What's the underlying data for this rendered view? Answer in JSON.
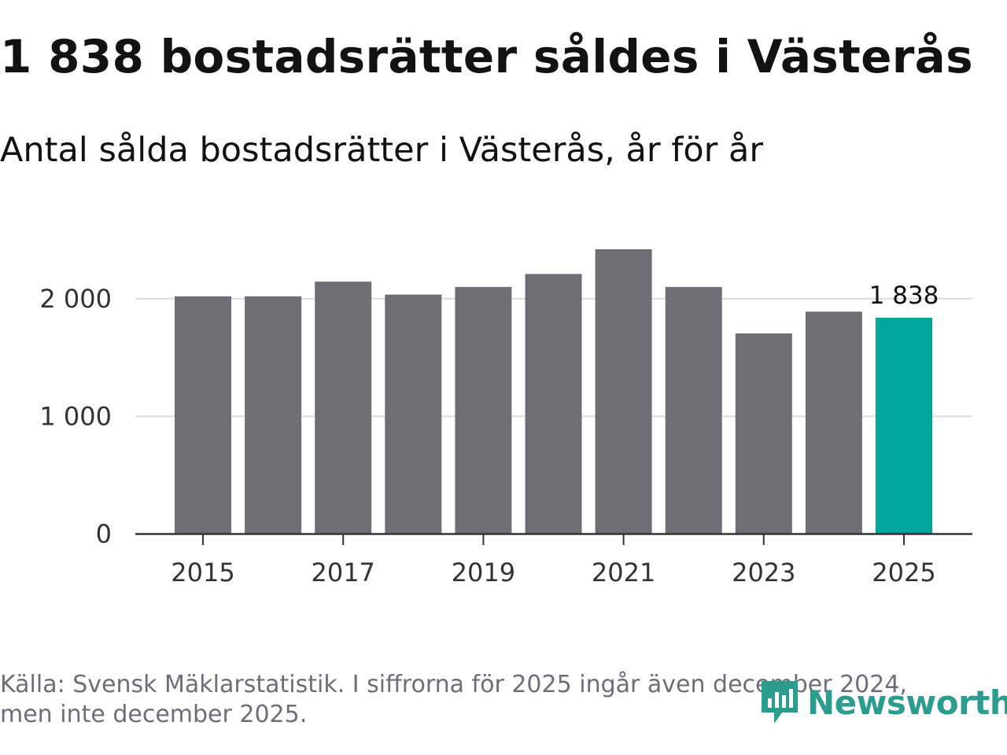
{
  "header": {
    "title": "1 838 bostadsrätter såldes i Västerås",
    "subtitle": "Antal sålda bostadsrätter i Västerås, år för år"
  },
  "footer": {
    "source_line1": "Källa: Svensk Mäklarstatistik. I siffrorna för 2025 ingår även december 2024,",
    "source_line2": "men inte december 2025.",
    "logo_text": "Newsworthy",
    "logo_icon": "newsworthy-logo-icon"
  },
  "colors": {
    "bar": "#6f6e75",
    "highlight": "#00a69a",
    "grid": "#dcdcdc",
    "axis": "#333333",
    "logo": "#2a9d8f"
  },
  "chart_data": {
    "type": "bar",
    "title": "1 838 bostadsrätter såldes i Västerås",
    "subtitle": "Antal sålda bostadsrätter i Västerås, år för år",
    "xlabel": "",
    "ylabel": "",
    "categories": [
      "2015",
      "2016",
      "2017",
      "2018",
      "2019",
      "2020",
      "2021",
      "2022",
      "2023",
      "2024",
      "2025"
    ],
    "values": [
      2020,
      2020,
      2145,
      2035,
      2100,
      2210,
      2420,
      2100,
      1705,
      1890,
      1838
    ],
    "highlight_index": 10,
    "ylim": [
      0,
      2500
    ],
    "yticks": [
      0,
      1000,
      2000
    ],
    "ytick_labels": [
      "0",
      "1 000",
      "2 000"
    ],
    "xtick_labels": [
      "2015",
      "2017",
      "2019",
      "2021",
      "2023",
      "2025"
    ],
    "data_labels": [
      {
        "index": 10,
        "text": "1 838"
      }
    ],
    "grid": true,
    "legend": "none"
  }
}
